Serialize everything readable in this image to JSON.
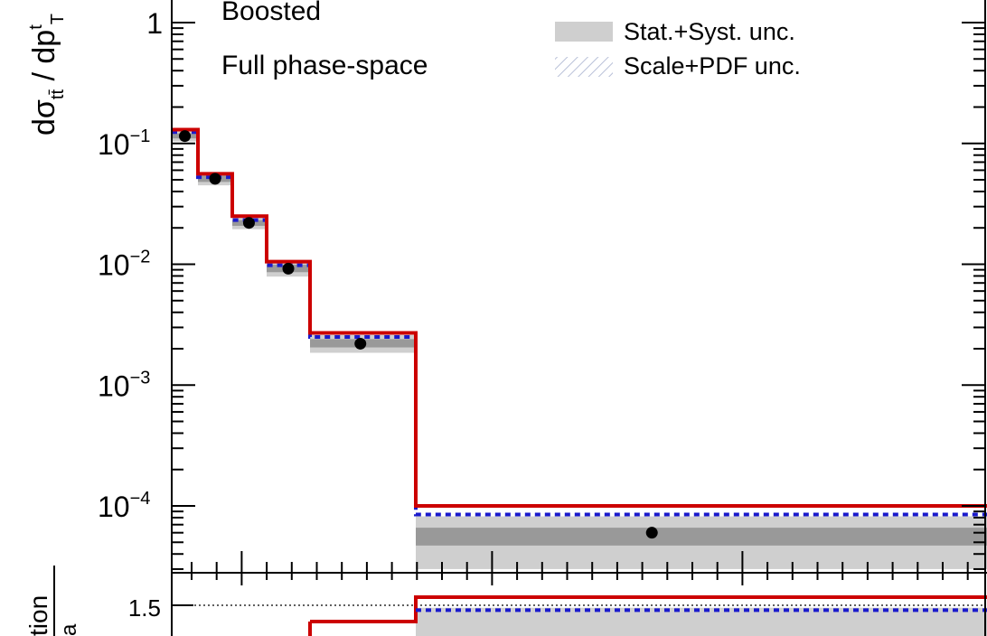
{
  "chart_data": [
    {
      "type": "line",
      "panel": "main",
      "ylabel": "dσ_tt̄ / dp_T^t",
      "yscale": "log",
      "ylim": [
        3e-05,
        1.2
      ],
      "xlim": [
        0,
        1000
      ],
      "y_tick_labels": [
        {
          "base": "1",
          "exp": ""
        },
        {
          "base": "10",
          "exp": "−1"
        },
        {
          "base": "10",
          "exp": "−2"
        },
        {
          "base": "10",
          "exp": "−3"
        },
        {
          "base": "10",
          "exp": "−4"
        }
      ],
      "y_ticks": [
        1,
        0.1,
        0.01,
        0.001,
        0.0001
      ],
      "text": [
        "Boosted",
        "Full phase-space"
      ],
      "legend": [
        {
          "label": "Stat.+Syst. unc.",
          "style": "gray-fill"
        },
        {
          "label": "Scale+PDF unc.",
          "style": "hatched"
        }
      ],
      "legend_position": "top-right",
      "bin_edges": [
        0,
        30,
        70,
        105,
        145,
        250,
        1000
      ],
      "data_points": [
        {
          "x": 15,
          "y": 0.115
        },
        {
          "x": 50,
          "y": 0.051
        },
        {
          "x": 87,
          "y": 0.022
        },
        {
          "x": 125,
          "y": 0.0092
        },
        {
          "x": 195,
          "y": 0.0022
        },
        {
          "x": 560,
          "y": 6e-05
        }
      ],
      "stat_syst_band": [
        {
          "lo": 0.104,
          "hi": 0.128
        },
        {
          "lo": 0.045,
          "hi": 0.057
        },
        {
          "lo": 0.0195,
          "hi": 0.0245
        },
        {
          "lo": 0.0079,
          "hi": 0.0106
        },
        {
          "lo": 0.00185,
          "hi": 0.0026
        },
        {
          "lo": 3e-05,
          "hi": 8.2e-05
        }
      ],
      "stat_band": [
        {
          "lo": 0.11,
          "hi": 0.121
        },
        {
          "lo": 0.048,
          "hi": 0.054
        },
        {
          "lo": 0.0208,
          "hi": 0.0232
        },
        {
          "lo": 0.0086,
          "hi": 0.0099
        },
        {
          "lo": 0.00205,
          "hi": 0.0024
        },
        {
          "lo": 4.7e-05,
          "hi": 6.6e-05
        }
      ],
      "series": [
        {
          "style": "red-solid",
          "values": [
            0.13,
            0.056,
            0.025,
            0.0105,
            0.0027,
            0.0001
          ]
        },
        {
          "style": "blue-dashed",
          "values": [
            0.124,
            0.0525,
            0.0232,
            0.0098,
            0.0025,
            8.5e-05
          ]
        }
      ],
      "colors": {
        "red": "#cc0000",
        "blue": "#1a1acc",
        "band_light": "#cfcfcf",
        "band_dark": "#999999",
        "points": "#000000"
      }
    },
    {
      "type": "line",
      "panel": "ratio",
      "ylabel": "…tion / …a",
      "y_tick_labels": [
        "1.5"
      ],
      "y_ticks": [
        1.5
      ],
      "reference_line": 1.5,
      "series": [
        {
          "style": "red-solid",
          "values_visible": [
            {
              "x_from": 145,
              "x_to": 250,
              "y": 1.3
            },
            {
              "x_from": 250,
              "x_to": 1000,
              "y": 1.6
            }
          ]
        },
        {
          "style": "blue-dashed",
          "values_visible": [
            {
              "x_from": 250,
              "x_to": 1000,
              "y": 1.44
            }
          ]
        }
      ]
    }
  ]
}
